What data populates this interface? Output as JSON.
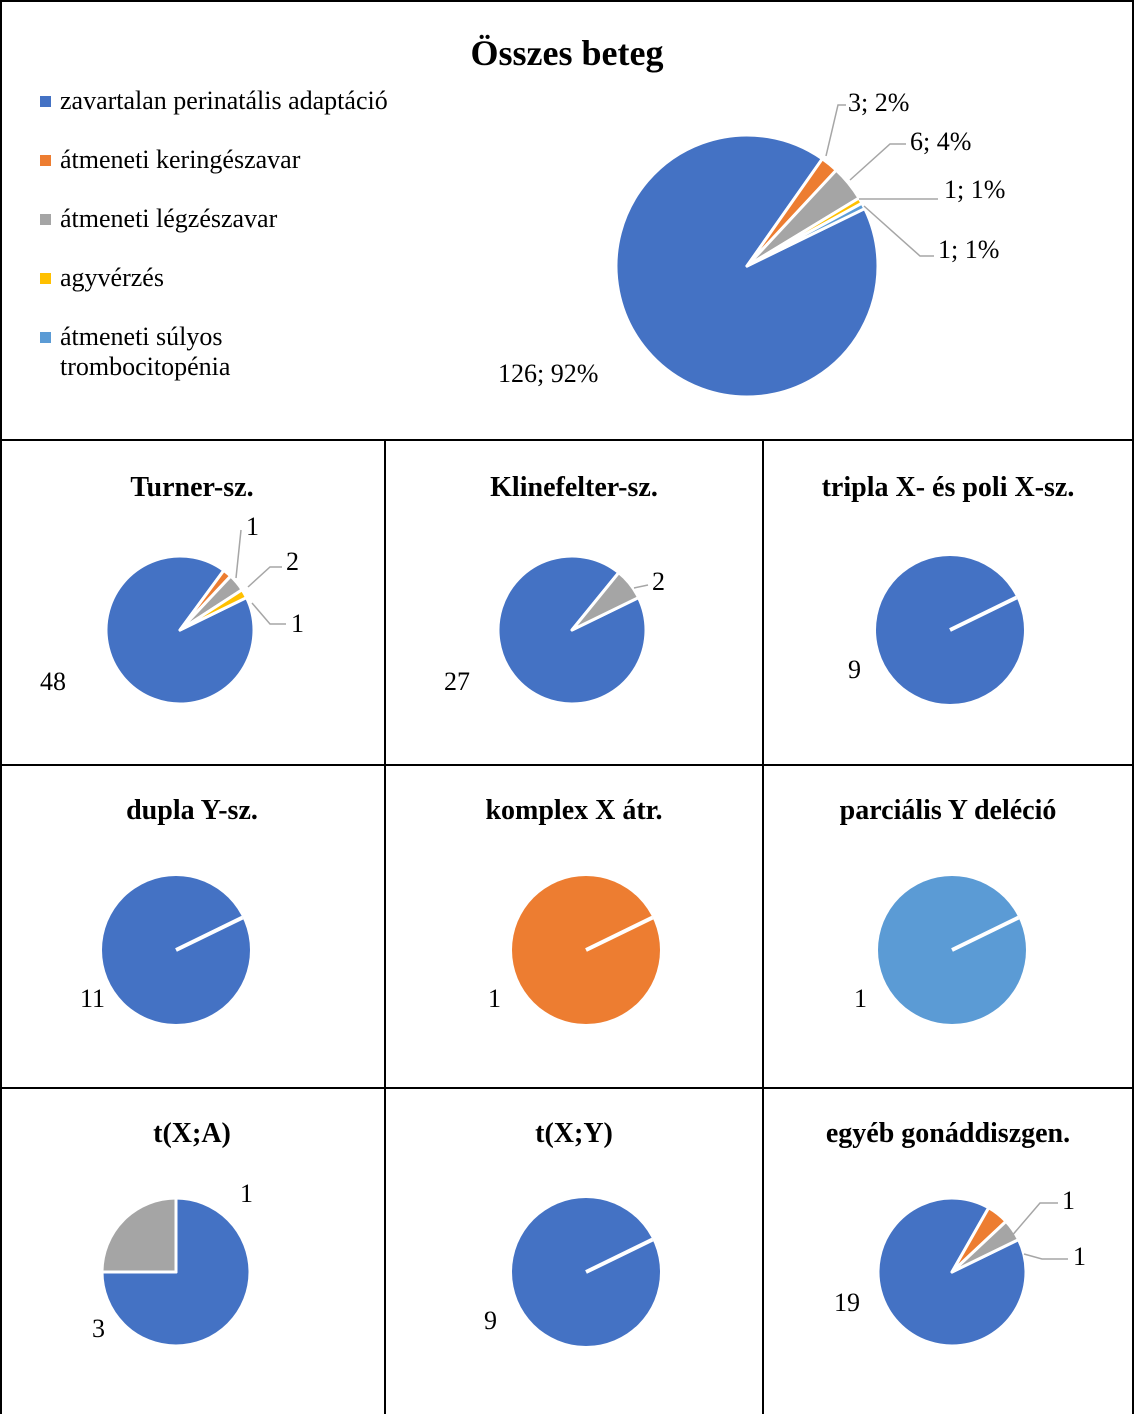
{
  "colors": {
    "zavartalan": "#4472C4",
    "keringes": "#ED7D31",
    "legzes": "#A5A5A5",
    "agyverzes": "#FFC000",
    "trombo": "#5B9BD5"
  },
  "legend": [
    {
      "label": "zavartalan perinatális adaptáció",
      "color": "#4472C4"
    },
    {
      "label": "átmeneti keringészavar",
      "color": "#ED7D31"
    },
    {
      "label": "átmeneti légzészavar",
      "color": "#A5A5A5"
    },
    {
      "label": "agyvérzés",
      "color": "#FFC000"
    },
    {
      "label": "átmeneti súlyos trombocitopénia",
      "color": "#5B9BD5"
    }
  ],
  "chart_data": [
    {
      "type": "pie",
      "title": "Összes beteg",
      "categories": [
        "zavartalan perinatális adaptáció",
        "átmeneti keringészavar",
        "átmeneti légzészavar",
        "agyvérzés",
        "átmeneti súlyos trombocitopénia"
      ],
      "values": [
        126,
        3,
        6,
        1,
        1
      ],
      "data_labels": [
        "126; 92%",
        "3; 2%",
        "6; 4%",
        "1; 1%",
        "1; 1%"
      ]
    },
    {
      "type": "pie",
      "title": "Turner-sz.",
      "categories": [
        "zavartalan perinatális adaptáció",
        "átmeneti keringészavar",
        "átmeneti légzészavar",
        "agyvérzés"
      ],
      "values": [
        48,
        1,
        2,
        1
      ],
      "data_labels": [
        "48",
        "1",
        "2",
        "1"
      ]
    },
    {
      "type": "pie",
      "title": "Klinefelter-sz.",
      "categories": [
        "zavartalan perinatális adaptáció",
        "átmeneti légzészavar"
      ],
      "values": [
        27,
        2
      ],
      "data_labels": [
        "27",
        "2"
      ]
    },
    {
      "type": "pie",
      "title": "tripla X- és poli X-sz.",
      "categories": [
        "zavartalan perinatális adaptáció"
      ],
      "values": [
        9
      ],
      "data_labels": [
        "9"
      ]
    },
    {
      "type": "pie",
      "title": "dupla Y-sz.",
      "categories": [
        "zavartalan perinatális adaptáció"
      ],
      "values": [
        11
      ],
      "data_labels": [
        "11"
      ]
    },
    {
      "type": "pie",
      "title": "komplex X átr.",
      "categories": [
        "átmeneti keringészavar"
      ],
      "values": [
        1
      ],
      "data_labels": [
        "1"
      ]
    },
    {
      "type": "pie",
      "title": "parciális Y deléció",
      "categories": [
        "átmeneti súlyos trombocitopénia"
      ],
      "values": [
        1
      ],
      "data_labels": [
        "1"
      ]
    },
    {
      "type": "pie",
      "title": "t(X;A)",
      "categories": [
        "zavartalan perinatális adaptáció",
        "átmeneti légzészavar"
      ],
      "values": [
        3,
        1
      ],
      "data_labels": [
        "3",
        "1"
      ]
    },
    {
      "type": "pie",
      "title": "t(X;Y)",
      "categories": [
        "zavartalan perinatális adaptáció"
      ],
      "values": [
        9
      ],
      "data_labels": [
        "9"
      ]
    },
    {
      "type": "pie",
      "title": "egyéb gonáddiszgen.",
      "categories": [
        "zavartalan perinatális adaptáció",
        "átmeneti keringészavar",
        "átmeneti légzészavar"
      ],
      "values": [
        19,
        1,
        1
      ],
      "data_labels": [
        "19",
        "1",
        "1"
      ]
    }
  ]
}
